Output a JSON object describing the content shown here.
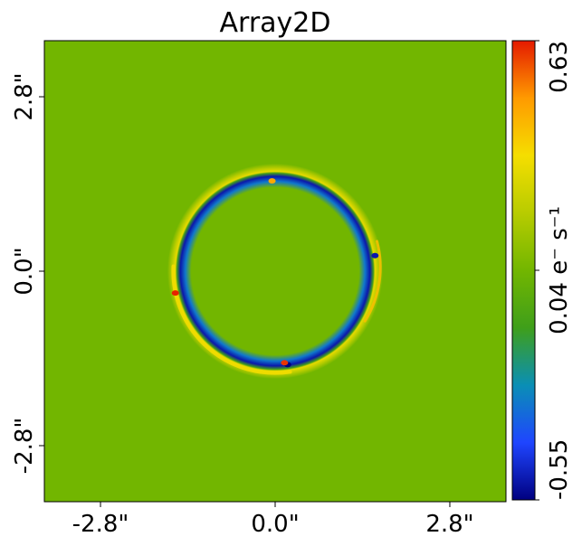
{
  "chart_data": {
    "type": "heatmap",
    "title": "Array2D",
    "x_ticks": [
      "-2.8\"",
      "0.0\"",
      "2.8\""
    ],
    "x_tick_values": [
      -2.8,
      0.0,
      2.8
    ],
    "y_ticks": [
      "2.8\"",
      "0.0\"",
      "-2.8\""
    ],
    "y_tick_values": [
      2.8,
      0.0,
      -2.8
    ],
    "xlim": [
      -3.7,
      3.7
    ],
    "ylim": [
      -3.7,
      3.7
    ],
    "background_value": 0.04,
    "features": [
      {
        "kind": "ring",
        "center": [
          0.0,
          0.0
        ],
        "radius": 1.6,
        "inner_edge_value": -0.5,
        "outer_edge_value": 0.3,
        "outer_halo_side": "bottom-left"
      },
      {
        "kind": "spot",
        "at": [
          -0.05,
          1.45
        ],
        "value": 0.45
      },
      {
        "kind": "spot",
        "at": [
          0.2,
          -1.5
        ],
        "value": -0.55
      },
      {
        "kind": "spot",
        "at": [
          0.15,
          -1.47
        ],
        "value": 0.6
      },
      {
        "kind": "spot",
        "at": [
          -1.6,
          -0.35
        ],
        "value": 0.62
      },
      {
        "kind": "spot",
        "at": [
          1.6,
          0.25
        ],
        "value": -0.5
      }
    ],
    "colorbar": {
      "min": -0.55,
      "max": 0.63,
      "min_label": "-0.55",
      "max_label": "0.63",
      "mid_label": "0.04 e⁻ s⁻¹",
      "colormap": [
        "#000080",
        "#1f45ff",
        "#0a8fb5",
        "#3f9f1a",
        "#72b600",
        "#b8cc00",
        "#f5de00",
        "#ff9a00",
        "#e41a00"
      ]
    }
  }
}
